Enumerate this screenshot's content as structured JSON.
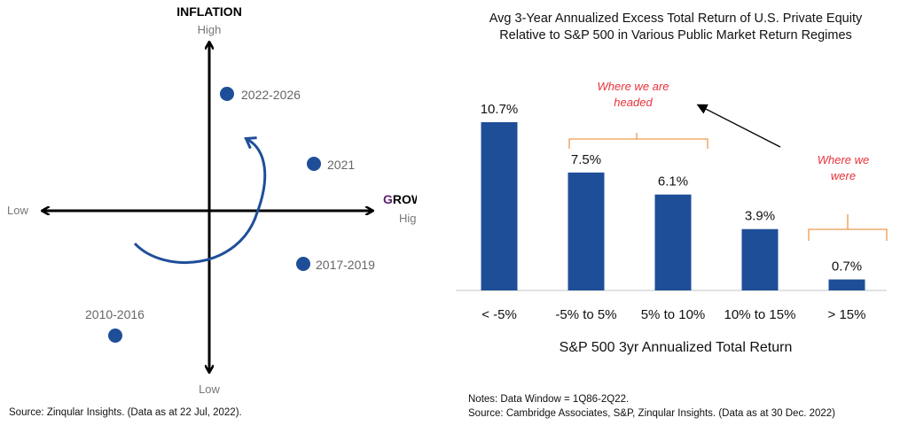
{
  "left_chart": {
    "y_axis_title": "INFLATION",
    "y_high": "High",
    "y_low": "Low",
    "x_axis_title_first": "G",
    "x_axis_title_rest": "ROWTH",
    "x_high": "High",
    "x_low": "Low",
    "point_color": "#1f4e99",
    "points": [
      {
        "label": "2022-2026"
      },
      {
        "label": "2021"
      },
      {
        "label": "2017-2019"
      },
      {
        "label": "2010-2016"
      }
    ],
    "source": "Source: Zinqular Insights. (Data as at 22 Jul, 2022)."
  },
  "chart_data": {
    "type": "bar",
    "title_line1": "Avg 3-Year Annualized Excess Total Return of U.S. Private Equity",
    "title_line2": "Relative to S&P 500 in Various Public Market Return Regimes",
    "xlabel": "S&P 500 3yr Annualized Total Return",
    "ylabel": "",
    "categories": [
      "< -5%",
      "-5% to 5%",
      "5% to 10%",
      "10% to 15%",
      "> 15%"
    ],
    "values": [
      10.7,
      7.5,
      6.1,
      3.9,
      0.7
    ],
    "value_labels": [
      "10.7%",
      "7.5%",
      "6.1%",
      "3.9%",
      "0.7%"
    ],
    "ylim": [
      0,
      11
    ],
    "grid": false,
    "bar_color": "#1f4e99",
    "annotations": {
      "headed_line1": "Where we are",
      "headed_line2": "headed",
      "were_line1": "Where we",
      "were_line2": "were",
      "annotation_color": "#e8333a",
      "brace_color": "#ee9a4d"
    },
    "notes": "Notes: Data Window = 1Q86-2Q22.",
    "source": "Source: Cambridge Associates, S&P, Zinqular Insights. (Data as at 30 Dec. 2022)"
  }
}
